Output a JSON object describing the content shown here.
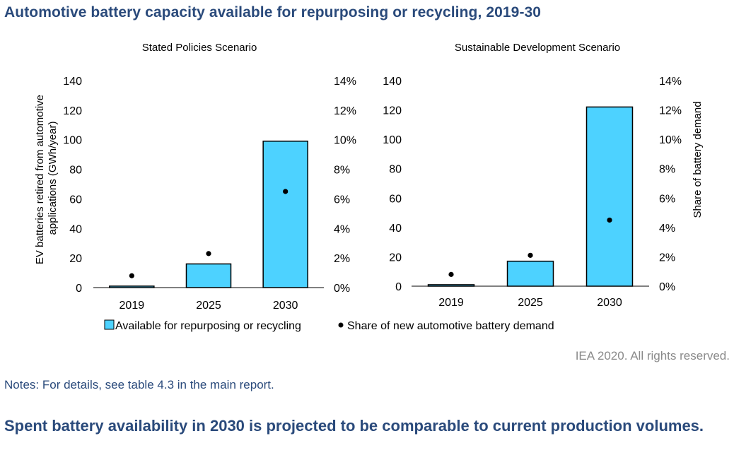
{
  "title": "Automotive battery capacity available for repurposing or recycling, 2019-30",
  "credit": "IEA 2020. All rights reserved.",
  "notes": "Notes: For details, see table 4.3 in the main report.",
  "subtitle": "Spent battery availability in 2030 is projected to be comparable to current production volumes.",
  "colors": {
    "bar": "#4dd2ff",
    "bar_outline": "#000000",
    "dot": "#000000",
    "heading": "#2a4a7b"
  },
  "chart_data": [
    {
      "type": "bar",
      "title": "Stated Policies Scenario",
      "categories": [
        "2019",
        "2025",
        "2030"
      ],
      "ylabel": "EV batteries retired from automotive applications (GWh/year)",
      "ylim": [
        0,
        140
      ],
      "y_ticks": [
        "0",
        "20",
        "40",
        "60",
        "80",
        "100",
        "120",
        "140"
      ],
      "y2lim": [
        0,
        0.14
      ],
      "y2_ticks": [
        "0%",
        "2%",
        "4%",
        "6%",
        "8%",
        "10%",
        "12%",
        "14%"
      ],
      "series": [
        {
          "name": "Available for repurposing or recycling",
          "kind": "bar",
          "axis": "left",
          "values": [
            1,
            16,
            99
          ]
        },
        {
          "name": "Share of new automotive battery demand",
          "kind": "dot",
          "axis": "right",
          "values": [
            0.008,
            0.023,
            0.065
          ]
        }
      ]
    },
    {
      "type": "bar",
      "title": "Sustainable Development Scenario",
      "categories": [
        "2019",
        "2025",
        "2030"
      ],
      "y2label": "Share of battery demand",
      "ylim": [
        0,
        140
      ],
      "y_ticks": [
        "0",
        "20",
        "40",
        "60",
        "80",
        "100",
        "120",
        "140"
      ],
      "y2lim": [
        0,
        0.14
      ],
      "y2_ticks": [
        "0%",
        "2%",
        "4%",
        "6%",
        "8%",
        "10%",
        "12%",
        "14%"
      ],
      "series": [
        {
          "name": "Available for repurposing or recycling",
          "kind": "bar",
          "axis": "left",
          "values": [
            1,
            17,
            122
          ]
        },
        {
          "name": "Share of new automotive battery demand",
          "kind": "dot",
          "axis": "right",
          "values": [
            0.008,
            0.021,
            0.045
          ]
        }
      ]
    }
  ],
  "legend": {
    "bar_label": "Available for repurposing or recycling",
    "dot_label": "Share of new automotive battery demand"
  }
}
